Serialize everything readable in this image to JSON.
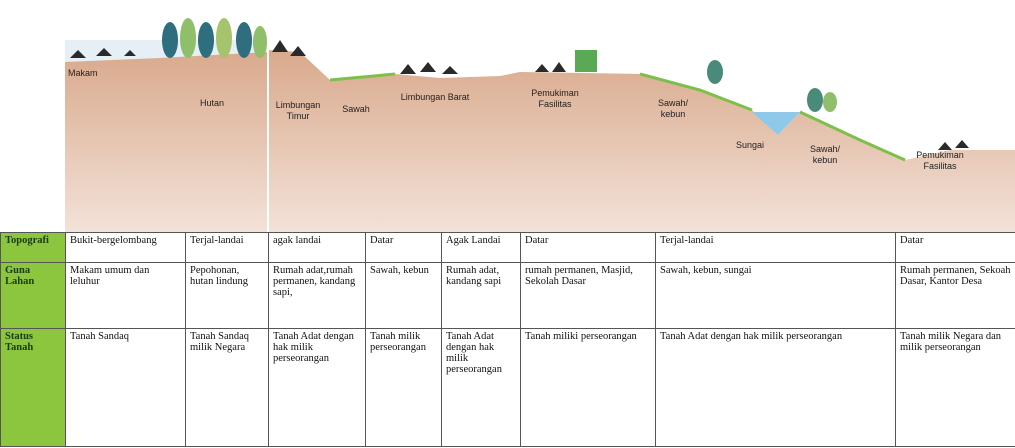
{
  "diagram": {
    "labels": [
      "Makam",
      "Hutan",
      "Limbungan Timur",
      "Sawah",
      "Limbungan Barat",
      "Pemukiman Fasilitas",
      "Sawah/ kebun",
      "Sungai",
      "Sawah/ kebun",
      "Pemukiman Fasilitas"
    ]
  },
  "table": {
    "rows": [
      [
        "Topografi",
        "Bukit-bergelombang",
        "Terjal-landai",
        "agak landai",
        "Datar",
        "Agak Landai",
        "Datar",
        "Terjal-landai",
        "Datar"
      ],
      [
        "Guna Lahan",
        "Makam umum dan leluhur",
        "Pepohonan, hutan lindung",
        "Rumah adat,rumah permanen, kandang sapi,",
        "Sawah, kebun",
        "Rumah adat, kandang sapi",
        "rumah permanen, Masjid, Sekolah Dasar",
        "Sawah, kebun, sungai",
        "Rumah permanen, Sekoah Dasar, Kantor Desa"
      ],
      [
        "Status Tanah",
        "Tanah Sandaq",
        "Tanah Sandaq milik Negara",
        "Tanah Adat dengan hak milik perseorangan",
        "Tanah milik perseorangan",
        "Tanah Adat dengan hak milik perseorangan",
        "Tanah miliki perseorangan",
        "Tanah Adat dengan hak milik perseorangan",
        "Tanah milik Negara dan milik perseorangan"
      ]
    ]
  }
}
